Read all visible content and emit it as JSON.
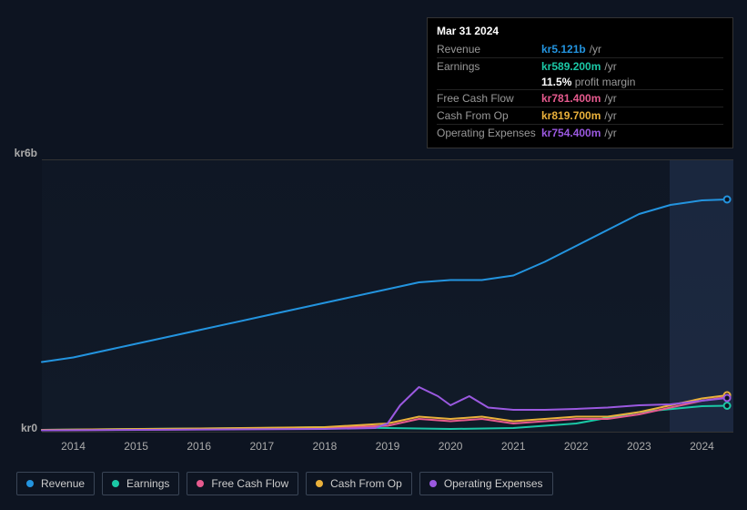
{
  "tooltip": {
    "date": "Mar 31 2024",
    "rows": [
      {
        "label": "Revenue",
        "value": "kr5.121b",
        "unit": "/yr",
        "color": "#2394df"
      },
      {
        "label": "Earnings",
        "value": "kr589.200m",
        "unit": "/yr",
        "color": "#1bc8a6"
      },
      {
        "label": "Free Cash Flow",
        "value": "kr781.400m",
        "unit": "/yr",
        "color": "#e65a8e"
      },
      {
        "label": "Cash From Op",
        "value": "kr819.700m",
        "unit": "/yr",
        "color": "#eab13b"
      },
      {
        "label": "Operating Expenses",
        "value": "kr754.400m",
        "unit": "/yr",
        "color": "#9b59e0"
      }
    ],
    "margin_pct": "11.5%",
    "margin_label": "profit margin"
  },
  "chart": {
    "type": "line",
    "background_color": "#0d1421",
    "grid_color": "#333333",
    "right_band_color": "rgba(50,70,110,0.35)",
    "xlim": [
      2013.5,
      2024.5
    ],
    "ylim": [
      0,
      6
    ],
    "y_ticks": [
      {
        "v": 0,
        "label": "kr0"
      },
      {
        "v": 6,
        "label": "kr6b"
      }
    ],
    "x_ticks": [
      "2014",
      "2015",
      "2016",
      "2017",
      "2018",
      "2019",
      "2020",
      "2021",
      "2022",
      "2023",
      "2024"
    ],
    "tick_fontsize": 12,
    "tick_color": "#aaaaaa",
    "line_width": 2,
    "series": [
      {
        "name": "Revenue",
        "color": "#2394df",
        "data": [
          [
            2013.5,
            1.55
          ],
          [
            2014,
            1.65
          ],
          [
            2015,
            1.95
          ],
          [
            2016,
            2.25
          ],
          [
            2017,
            2.55
          ],
          [
            2018,
            2.85
          ],
          [
            2019,
            3.15
          ],
          [
            2019.5,
            3.3
          ],
          [
            2020,
            3.35
          ],
          [
            2020.5,
            3.35
          ],
          [
            2021,
            3.45
          ],
          [
            2021.5,
            3.75
          ],
          [
            2022,
            4.1
          ],
          [
            2022.5,
            4.45
          ],
          [
            2023,
            4.8
          ],
          [
            2023.5,
            5.0
          ],
          [
            2024,
            5.1
          ],
          [
            2024.4,
            5.12
          ]
        ]
      },
      {
        "name": "Earnings",
        "color": "#1bc8a6",
        "data": [
          [
            2013.5,
            0.06
          ],
          [
            2015,
            0.08
          ],
          [
            2017,
            0.1
          ],
          [
            2018,
            0.12
          ],
          [
            2019,
            0.1
          ],
          [
            2020,
            0.08
          ],
          [
            2021,
            0.1
          ],
          [
            2022,
            0.2
          ],
          [
            2023,
            0.45
          ],
          [
            2024,
            0.58
          ],
          [
            2024.4,
            0.59
          ]
        ]
      },
      {
        "name": "Free Cash Flow",
        "color": "#e65a8e",
        "data": [
          [
            2013.5,
            0.05
          ],
          [
            2016,
            0.07
          ],
          [
            2018,
            0.1
          ],
          [
            2019,
            0.15
          ],
          [
            2019.5,
            0.3
          ],
          [
            2020,
            0.25
          ],
          [
            2020.5,
            0.3
          ],
          [
            2021,
            0.2
          ],
          [
            2021.5,
            0.25
          ],
          [
            2022,
            0.3
          ],
          [
            2022.5,
            0.3
          ],
          [
            2023,
            0.4
          ],
          [
            2023.5,
            0.55
          ],
          [
            2024,
            0.7
          ],
          [
            2024.4,
            0.78
          ]
        ]
      },
      {
        "name": "Cash From Op",
        "color": "#eab13b",
        "data": [
          [
            2013.5,
            0.06
          ],
          [
            2016,
            0.09
          ],
          [
            2018,
            0.12
          ],
          [
            2019,
            0.2
          ],
          [
            2019.5,
            0.35
          ],
          [
            2020,
            0.3
          ],
          [
            2020.5,
            0.35
          ],
          [
            2021,
            0.25
          ],
          [
            2021.5,
            0.3
          ],
          [
            2022,
            0.35
          ],
          [
            2022.5,
            0.35
          ],
          [
            2023,
            0.45
          ],
          [
            2023.5,
            0.6
          ],
          [
            2024,
            0.75
          ],
          [
            2024.4,
            0.82
          ]
        ]
      },
      {
        "name": "Operating Expenses",
        "color": "#9b59e0",
        "data": [
          [
            2013.5,
            0.05
          ],
          [
            2018,
            0.08
          ],
          [
            2018.8,
            0.1
          ],
          [
            2019.0,
            0.2
          ],
          [
            2019.2,
            0.6
          ],
          [
            2019.5,
            1.0
          ],
          [
            2019.8,
            0.8
          ],
          [
            2020.0,
            0.6
          ],
          [
            2020.3,
            0.8
          ],
          [
            2020.6,
            0.55
          ],
          [
            2021,
            0.5
          ],
          [
            2021.5,
            0.5
          ],
          [
            2022,
            0.52
          ],
          [
            2022.5,
            0.55
          ],
          [
            2023,
            0.6
          ],
          [
            2023.5,
            0.62
          ],
          [
            2024,
            0.7
          ],
          [
            2024.4,
            0.76
          ]
        ]
      }
    ]
  },
  "legend": [
    {
      "label": "Revenue",
      "color": "#2394df"
    },
    {
      "label": "Earnings",
      "color": "#1bc8a6"
    },
    {
      "label": "Free Cash Flow",
      "color": "#e65a8e"
    },
    {
      "label": "Cash From Op",
      "color": "#eab13b"
    },
    {
      "label": "Operating Expenses",
      "color": "#9b59e0"
    }
  ]
}
